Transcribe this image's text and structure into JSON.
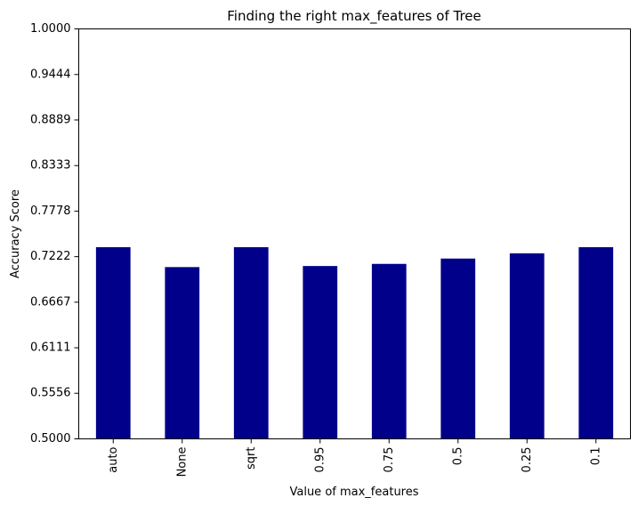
{
  "chart_data": {
    "type": "bar",
    "title": "Finding the right max_features of Tree",
    "xlabel": "Value of max_features",
    "ylabel": "Accuracy Score",
    "categories": [
      "auto",
      "None",
      "sqrt",
      "0.95",
      "0.75",
      "0.5",
      "0.25",
      "0.1"
    ],
    "values": [
      0.7338,
      0.7095,
      0.7338,
      0.7108,
      0.7134,
      0.7199,
      0.7263,
      0.7338
    ],
    "ylim": [
      0.5,
      1.0
    ],
    "yticks": [
      "0.5000",
      "0.5556",
      "0.6111",
      "0.6667",
      "0.7222",
      "0.7778",
      "0.8333",
      "0.8889",
      "0.9444",
      "1.0000"
    ],
    "bar_color": "#00008b",
    "grid": false,
    "legend": "none"
  }
}
